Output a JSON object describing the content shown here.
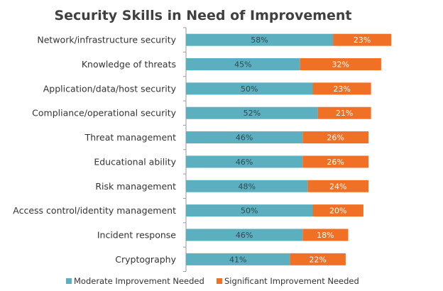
{
  "chart_data": {
    "type": "bar",
    "orientation": "horizontal",
    "stacked": true,
    "title": "Security Skills in Need of Improvement",
    "xlabel": "",
    "ylabel": "",
    "xlim": [
      0,
      100
    ],
    "grid": false,
    "legend_position": "bottom",
    "categories": [
      "Network/infrastructure security",
      "Knowledge of threats",
      "Application/data/host security",
      "Compliance/operational security",
      "Threat management",
      "Educational ability",
      "Risk management",
      "Access control/identity management",
      "Incident response",
      "Cryptography"
    ],
    "series": [
      {
        "name": "Moderate Improvement Needed",
        "color": "#5BAFBE",
        "label_color": "#2E4A55",
        "values": [
          58,
          45,
          50,
          52,
          46,
          46,
          48,
          50,
          46,
          41
        ]
      },
      {
        "name": "Significant Improvement Needed",
        "color": "#F07126",
        "label_color": "#FFFFFF",
        "values": [
          23,
          32,
          23,
          21,
          26,
          26,
          24,
          20,
          18,
          22
        ]
      }
    ],
    "value_suffix": "%"
  }
}
